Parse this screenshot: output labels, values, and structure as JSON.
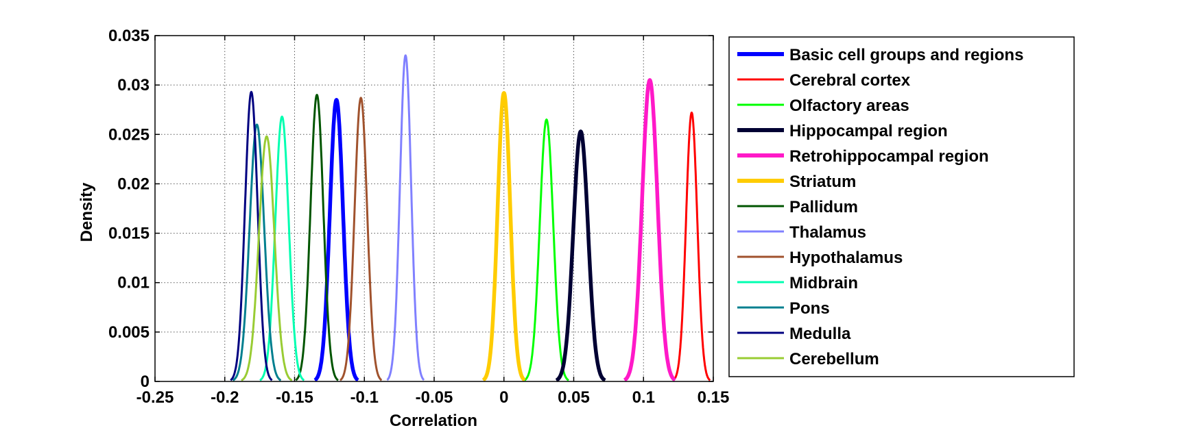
{
  "chart_data": {
    "type": "line",
    "xlabel": "Correlation",
    "ylabel": "Density",
    "xlim": [
      -0.25,
      0.15
    ],
    "ylim": [
      0,
      0.035
    ],
    "x_ticks": [
      "-0.25",
      "-0.2",
      "-0.15",
      "-0.1",
      "-0.05",
      "0",
      "0.05",
      "0.1",
      "0.15"
    ],
    "y_ticks": [
      "0",
      "0.005",
      "0.01",
      "0.015",
      "0.02",
      "0.025",
      "0.03",
      "0.035"
    ],
    "grid": true,
    "legend_position": "outside-right",
    "series": [
      {
        "name": "Basic cell groups and regions",
        "color": "#0000ff",
        "thick": true,
        "mean": -0.12,
        "sd": 0.0047,
        "peak": 0.0285
      },
      {
        "name": "Cerebral cortex",
        "color": "#ff0000",
        "thick": false,
        "mean": 0.1345,
        "sd": 0.004,
        "peak": 0.0272
      },
      {
        "name": "Olfactory areas",
        "color": "#00ff00",
        "thick": false,
        "mean": 0.0305,
        "sd": 0.0048,
        "peak": 0.0265
      },
      {
        "name": "Hippocampal region",
        "color": "#000033",
        "thick": true,
        "mean": 0.055,
        "sd": 0.0053,
        "peak": 0.0253
      },
      {
        "name": "Retrohippocampal region",
        "color": "#ff19c8",
        "thick": true,
        "mean": 0.1045,
        "sd": 0.0055,
        "peak": 0.0305
      },
      {
        "name": "Striatum",
        "color": "#ffcc00",
        "thick": true,
        "mean": 0.0,
        "sd": 0.0045,
        "peak": 0.0292
      },
      {
        "name": "Pallidum",
        "color": "#005500",
        "thick": false,
        "mean": -0.134,
        "sd": 0.0046,
        "peak": 0.029
      },
      {
        "name": "Thalamus",
        "color": "#8080ff",
        "thick": false,
        "mean": -0.0705,
        "sd": 0.004,
        "peak": 0.033
      },
      {
        "name": "Hypothalamus",
        "color": "#a0522d",
        "thick": false,
        "mean": -0.1025,
        "sd": 0.0045,
        "peak": 0.0287
      },
      {
        "name": "Midbrain",
        "color": "#00ffb0",
        "thick": false,
        "mean": -0.159,
        "sd": 0.0048,
        "peak": 0.0268
      },
      {
        "name": "Pons",
        "color": "#007f8f",
        "thick": false,
        "mean": -0.177,
        "sd": 0.0052,
        "peak": 0.026
      },
      {
        "name": "Medulla",
        "color": "#000080",
        "thick": false,
        "mean": -0.181,
        "sd": 0.0045,
        "peak": 0.0293
      },
      {
        "name": "Cerebellum",
        "color": "#99cc33",
        "thick": false,
        "mean": -0.17,
        "sd": 0.0055,
        "peak": 0.0248
      }
    ]
  }
}
